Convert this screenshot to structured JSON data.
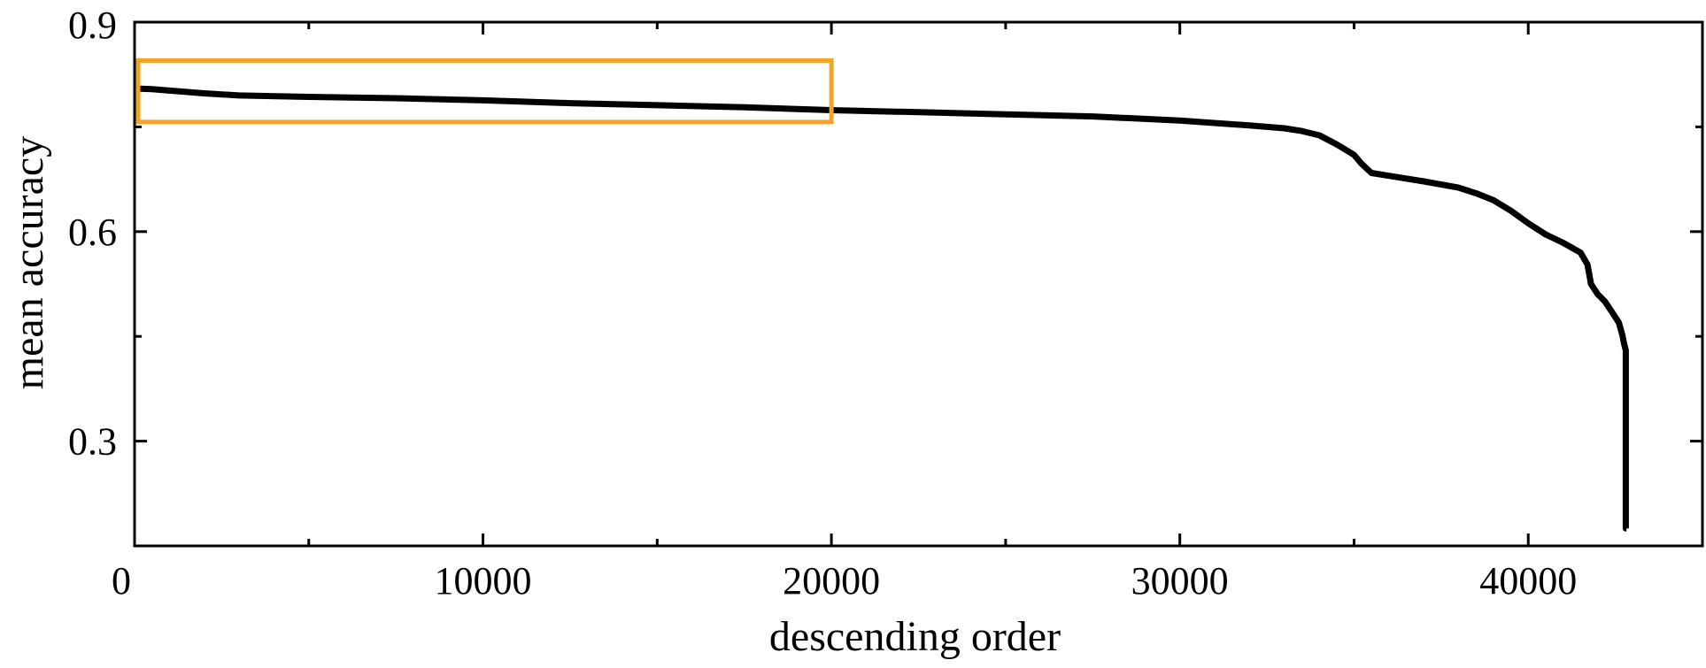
{
  "chart_data": {
    "type": "line",
    "xlabel": "descending order",
    "ylabel": "mean accuracy",
    "xlim": [
      0,
      45000
    ],
    "ylim": [
      0.15,
      0.9
    ],
    "xticks": [
      0,
      10000,
      20000,
      30000,
      40000
    ],
    "xtick_labels": [
      "0",
      "10000",
      "20000",
      "30000",
      "40000"
    ],
    "yticks": [
      0.3,
      0.6,
      0.9
    ],
    "ytick_labels": [
      "0.3",
      "0.6",
      "0.9"
    ],
    "grid": false,
    "series": [
      {
        "color": "#000000",
        "x": [
          0,
          500,
          1000,
          2000,
          3000,
          5000,
          7500,
          10000,
          12500,
          15000,
          17500,
          20000,
          22500,
          25000,
          27500,
          30000,
          32000,
          33000,
          33500,
          34000,
          34500,
          35000,
          35200,
          35500,
          36000,
          37000,
          38000,
          38500,
          39000,
          39500,
          40000,
          40500,
          41000,
          41500,
          41700,
          41800,
          42000,
          42200,
          42400,
          42600,
          42700,
          42750,
          42800,
          42800,
          42820
        ],
        "y": [
          0.805,
          0.804,
          0.802,
          0.798,
          0.795,
          0.793,
          0.791,
          0.788,
          0.784,
          0.781,
          0.778,
          0.774,
          0.771,
          0.768,
          0.765,
          0.759,
          0.752,
          0.748,
          0.744,
          0.738,
          0.725,
          0.71,
          0.698,
          0.684,
          0.68,
          0.672,
          0.663,
          0.655,
          0.645,
          0.63,
          0.612,
          0.596,
          0.584,
          0.57,
          0.553,
          0.525,
          0.51,
          0.5,
          0.485,
          0.47,
          0.452,
          0.44,
          0.43,
          0.175,
          0.175
        ]
      }
    ],
    "annotations": [
      {
        "type": "rectangle",
        "color": "#F4A322",
        "x_range": [
          0,
          20000
        ],
        "y_range": [
          0.757,
          0.845
        ]
      }
    ]
  }
}
